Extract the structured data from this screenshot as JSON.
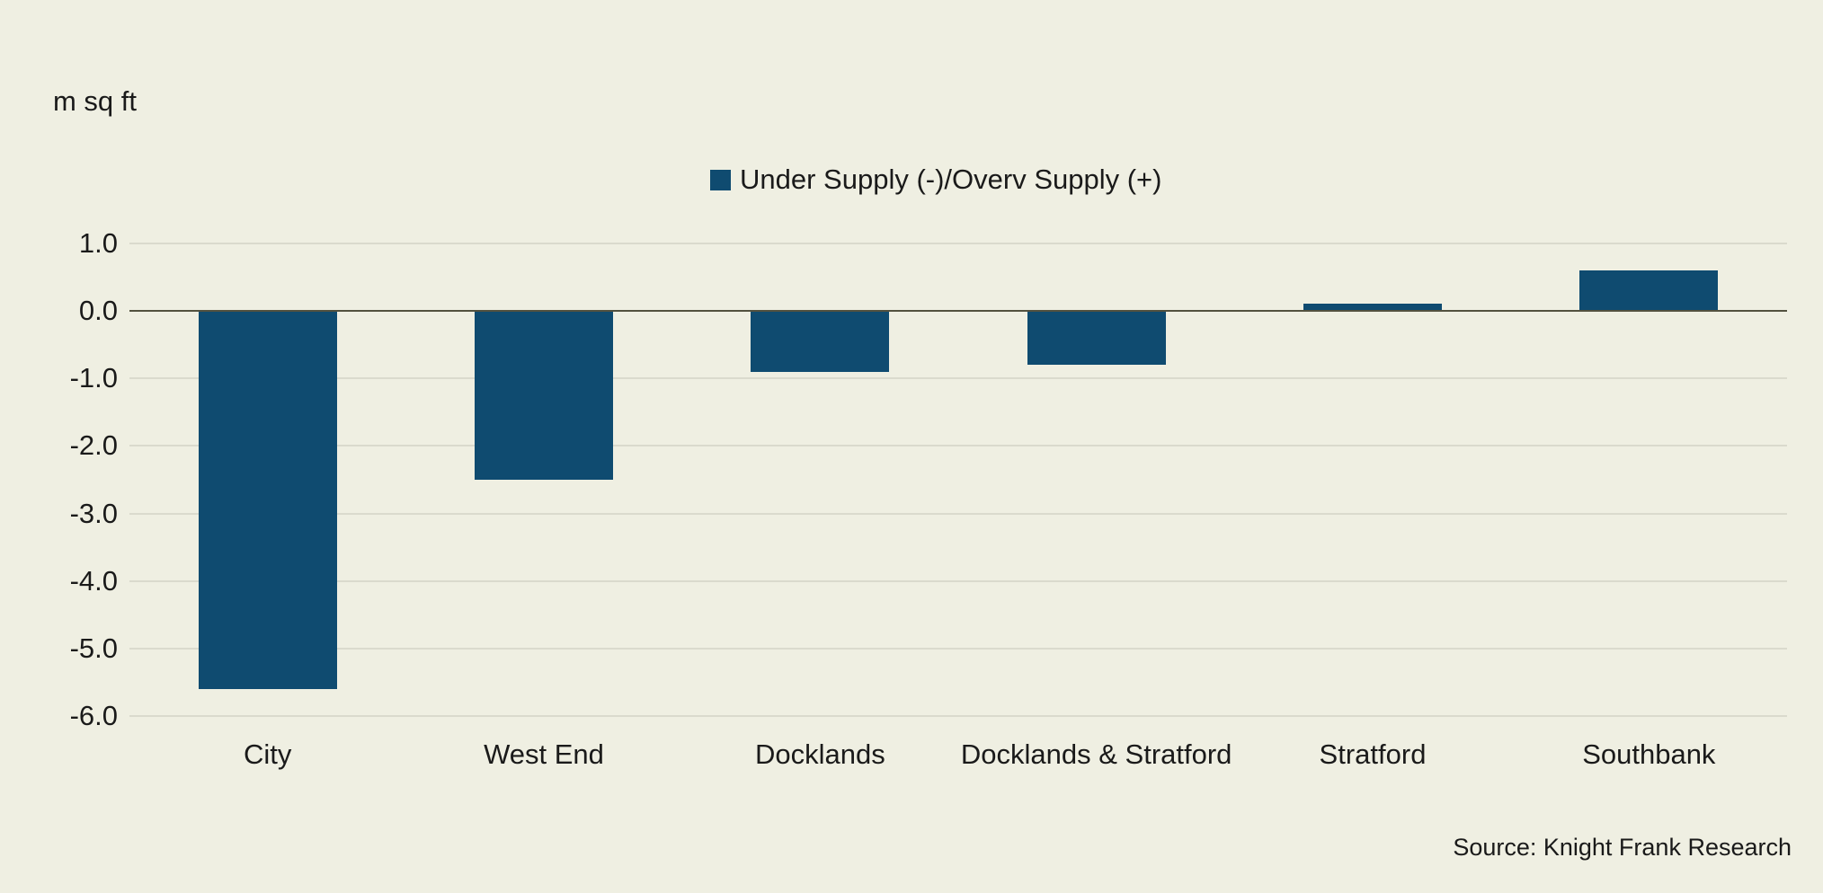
{
  "chart": {
    "units_label": "m sq ft",
    "legend": {
      "label": "Under Supply (-)/Overv Supply (+)"
    },
    "source": "Source: Knight Frank Research"
  },
  "chart_data": {
    "type": "bar",
    "categories": [
      "City",
      "West End",
      "Docklands",
      "Docklands & Stratford",
      "Stratford",
      "Southbank"
    ],
    "series": [
      {
        "name": "Under Supply (-)/Overv Supply (+)",
        "values": [
          -5.6,
          -2.5,
          -0.9,
          -0.8,
          0.1,
          0.6
        ]
      }
    ],
    "title": "",
    "xlabel": "",
    "ylabel": "m sq ft",
    "ylim": [
      -6.0,
      1.0
    ],
    "yticks": [
      "1.0",
      "0.0",
      "-1.0",
      "-2.0",
      "-3.0",
      "-4.0",
      "-5.0",
      "-6.0"
    ],
    "grid": true,
    "legend_position": "top-center",
    "bar_color": "#0F4B70",
    "background_color": "#EFEFE2",
    "zero_line_color": "#53523F",
    "gridline_color": "#DADACD"
  }
}
